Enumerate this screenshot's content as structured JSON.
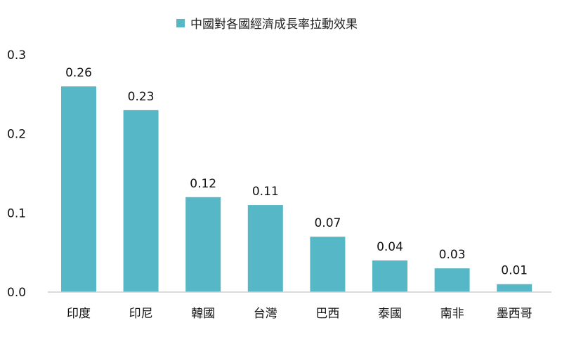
{
  "chart_data": {
    "type": "bar",
    "title": "",
    "xlabel": "",
    "ylabel": "",
    "categories": [
      "印度",
      "印尼",
      "韓國",
      "台灣",
      "巴西",
      "泰國",
      "南非",
      "墨西哥"
    ],
    "series": [
      {
        "name": "中國對各國經濟成長率拉動效果",
        "values": [
          0.26,
          0.23,
          0.12,
          0.11,
          0.07,
          0.04,
          0.03,
          0.01
        ],
        "value_labels": [
          "0.26",
          "0.23",
          "0.12",
          "0.11",
          "0.07",
          "0.04",
          "0.03",
          "0.01"
        ]
      }
    ],
    "ylim": [
      0,
      0.3
    ],
    "yticks": [
      "0.0",
      "0.1",
      "0.2",
      "0.3"
    ],
    "yticks_values": [
      0,
      0.1,
      0.2,
      0.3
    ],
    "grid": false,
    "legend_position": "top-center",
    "colors": {
      "bar": "#56B7C6",
      "axis": "#cfcfcf",
      "text": "#111111"
    }
  }
}
